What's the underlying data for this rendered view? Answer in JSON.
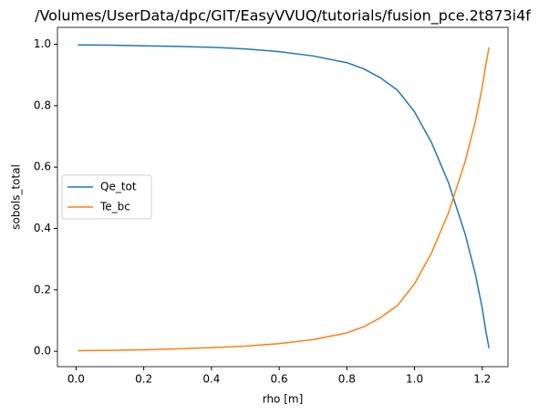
{
  "chart_data": {
    "type": "line",
    "title": "/Volumes/UserData/dpc/GIT/EasyVVUQ/tutorials/fusion_pce.2t873i4f",
    "x_label": "rho [m]",
    "y_label": "sobols_total",
    "x": [
      0.005,
      0.1,
      0.2,
      0.3,
      0.4,
      0.5,
      0.6,
      0.7,
      0.8,
      0.85,
      0.9,
      0.95,
      1.0,
      1.05,
      1.1,
      1.15,
      1.18,
      1.2,
      1.21,
      1.22
    ],
    "series": [
      {
        "name": "Qe_tot",
        "color": "#1f77b4",
        "values": [
          0.998,
          0.997,
          0.995,
          0.993,
          0.99,
          0.985,
          0.976,
          0.962,
          0.94,
          0.92,
          0.89,
          0.85,
          0.78,
          0.68,
          0.55,
          0.38,
          0.25,
          0.14,
          0.07,
          0.01
        ]
      },
      {
        "name": "Te_bc",
        "color": "#ff7f0e",
        "values": [
          0.002,
          0.003,
          0.005,
          0.008,
          0.012,
          0.017,
          0.025,
          0.038,
          0.06,
          0.08,
          0.11,
          0.15,
          0.22,
          0.32,
          0.45,
          0.62,
          0.75,
          0.86,
          0.93,
          0.99
        ]
      }
    ],
    "xlim": [
      -0.055,
      1.276
    ],
    "ylim": [
      -0.05,
      1.055
    ],
    "xticks": [
      {
        "value": 0,
        "label": "0.0"
      },
      {
        "value": 0.2,
        "label": "0.2"
      },
      {
        "value": 0.4,
        "label": "0.4"
      },
      {
        "value": 0.6,
        "label": "0.6"
      },
      {
        "value": 0.8,
        "label": "0.8"
      },
      {
        "value": 1,
        "label": "1.0"
      },
      {
        "value": 1.2,
        "label": "1.2"
      }
    ],
    "yticks": [
      {
        "value": 0,
        "label": "0.0"
      },
      {
        "value": 0.2,
        "label": "0.2"
      },
      {
        "value": 0.4,
        "label": "0.4"
      },
      {
        "value": 0.6,
        "label": "0.6"
      },
      {
        "value": 0.8,
        "label": "0.8"
      },
      {
        "value": 1,
        "label": "1.0"
      }
    ],
    "legend": "center left"
  }
}
